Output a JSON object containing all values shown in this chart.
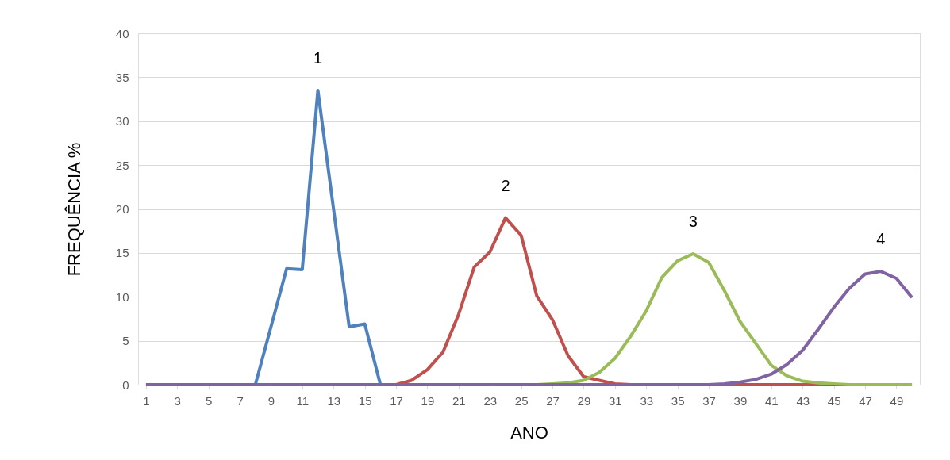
{
  "chart_data": {
    "type": "line",
    "xlabel": "ANO",
    "ylabel": "FREQUÊNCIA %",
    "x": [
      1,
      2,
      3,
      4,
      5,
      6,
      7,
      8,
      9,
      10,
      11,
      12,
      13,
      14,
      15,
      16,
      17,
      18,
      19,
      20,
      21,
      22,
      23,
      24,
      25,
      26,
      27,
      28,
      29,
      30,
      31,
      32,
      33,
      34,
      35,
      36,
      37,
      38,
      39,
      40,
      41,
      42,
      43,
      44,
      45,
      46,
      47,
      48,
      49,
      50
    ],
    "xlim": [
      0.5,
      50.5
    ],
    "xticks": [
      1,
      3,
      5,
      7,
      9,
      11,
      13,
      15,
      17,
      19,
      21,
      23,
      25,
      27,
      29,
      31,
      33,
      35,
      37,
      39,
      41,
      43,
      45,
      47,
      49
    ],
    "ylim": [
      0,
      40
    ],
    "yticks": [
      0,
      5,
      10,
      15,
      20,
      25,
      30,
      35,
      40
    ],
    "grid": "y",
    "legend": false,
    "marker": "none",
    "line_style": "solid",
    "series": [
      {
        "color": "#4f81bd",
        "values": [
          null,
          null,
          null,
          null,
          null,
          null,
          null,
          0,
          6.6,
          13.2,
          13.1,
          33.5,
          20,
          6.6,
          6.9,
          0,
          null,
          null,
          null,
          null,
          null,
          null,
          null,
          null,
          null,
          null,
          null,
          null,
          null,
          null,
          null,
          null,
          null,
          null,
          null,
          null,
          null,
          null,
          null,
          null,
          null,
          null,
          null,
          null,
          null,
          null,
          null,
          null,
          null,
          null
        ]
      },
      {
        "color": "#c0504d",
        "values": [
          null,
          null,
          null,
          null,
          null,
          null,
          null,
          null,
          null,
          null,
          null,
          null,
          null,
          null,
          null,
          0,
          0,
          0.5,
          1.7,
          3.7,
          8,
          13.4,
          15.1,
          19,
          17,
          10.1,
          7.4,
          3.3,
          0.9,
          0.5,
          0.1,
          0,
          0,
          0,
          0,
          0,
          0,
          0,
          0,
          0,
          0,
          0,
          0,
          0,
          0,
          0,
          0,
          null,
          null,
          null
        ]
      },
      {
        "color": "#9bbb59",
        "values": [
          null,
          null,
          null,
          null,
          null,
          null,
          null,
          null,
          null,
          null,
          null,
          null,
          null,
          null,
          null,
          null,
          null,
          null,
          null,
          null,
          null,
          null,
          null,
          null,
          null,
          0,
          0.1,
          0.2,
          0.5,
          1.4,
          3,
          5.5,
          8.4,
          12.2,
          14.1,
          14.9,
          13.9,
          10.7,
          7.2,
          4.7,
          2.2,
          1,
          0.4,
          0.2,
          0.1,
          0,
          0,
          0,
          0,
          0
        ]
      },
      {
        "color": "#8064a2",
        "values": [
          0,
          0,
          0,
          0,
          0,
          0,
          0,
          0,
          0,
          0,
          0,
          0,
          0,
          0,
          0,
          0,
          0,
          0,
          0,
          0,
          0,
          0,
          0,
          0,
          0,
          0,
          0,
          0,
          0,
          0,
          0,
          0,
          0,
          0,
          0,
          0,
          0,
          0.1,
          0.3,
          0.6,
          1.2,
          2.3,
          3.9,
          6.3,
          8.8,
          11,
          12.6,
          12.9,
          12.1,
          9.9
        ]
      }
    ],
    "annotations": [
      "1",
      "2",
      "3",
      "4"
    ]
  }
}
